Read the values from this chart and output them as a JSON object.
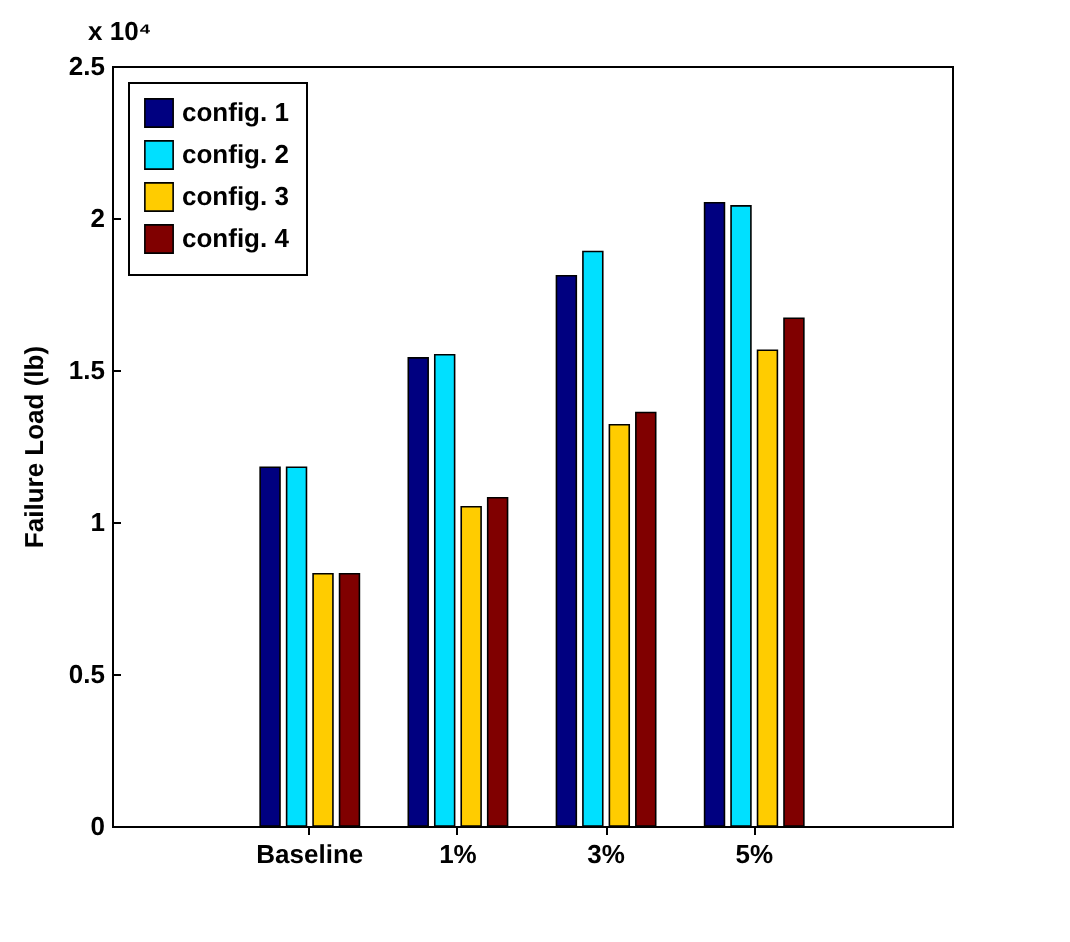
{
  "chart_data": {
    "type": "bar",
    "ylabel": "Failure Load (lb)",
    "categories": [
      "Baseline",
      "1%",
      "3%",
      "5%"
    ],
    "series": [
      {
        "name": "config. 1",
        "color": "#000080",
        "values": [
          1.18,
          1.54,
          1.81,
          2.05
        ]
      },
      {
        "name": "config. 2",
        "color": "#00e0ff",
        "values": [
          1.18,
          1.55,
          1.89,
          2.04
        ]
      },
      {
        "name": "config. 3",
        "color": "#ffcc00",
        "values": [
          0.83,
          1.05,
          1.32,
          1.565
        ]
      },
      {
        "name": "config. 4",
        "color": "#800000",
        "values": [
          0.83,
          1.08,
          1.36,
          1.67
        ]
      }
    ],
    "ylim": [
      0,
      2.5
    ],
    "yticks": [
      0,
      0.5,
      1,
      1.5,
      2,
      2.5
    ],
    "annotations": [
      "x 10⁴"
    ],
    "grid": false,
    "legend": "top left"
  }
}
